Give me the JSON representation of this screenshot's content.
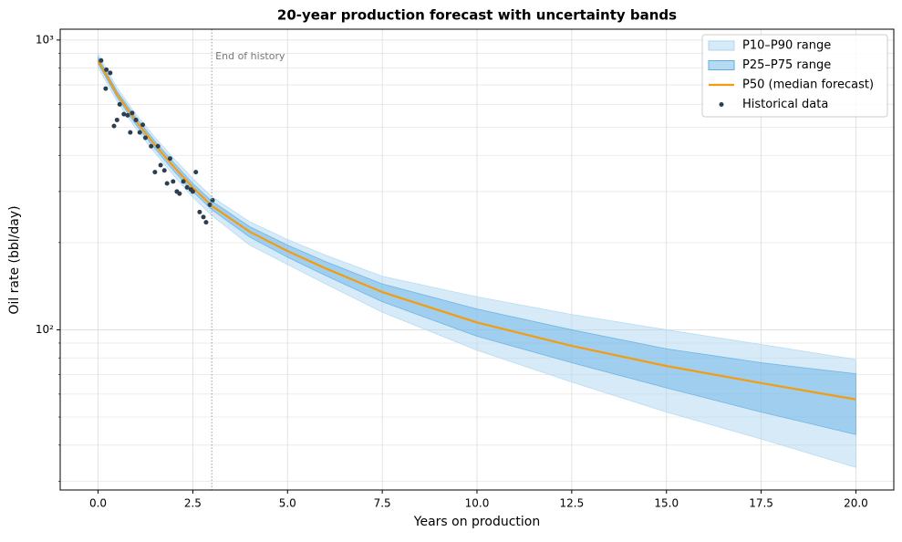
{
  "chart_data": {
    "type": "line",
    "title": "20-year production forecast with uncertainty bands",
    "x_label": "Years on production",
    "y_label": "Oil rate (bbl/day)",
    "xlim": [
      -1,
      21
    ],
    "ylim": [
      28,
      1090
    ],
    "log_y": true,
    "grid": true,
    "legend": "upper right",
    "xticks": [
      {
        "value": 0,
        "label": "0.0"
      },
      2.5,
      {
        "value": 5,
        "label": "5.0"
      },
      7.5,
      {
        "value": 10,
        "label": "10.0"
      },
      12.5,
      {
        "value": 15,
        "label": "15.0"
      },
      17.5,
      {
        "value": 20,
        "label": "20.0"
      }
    ],
    "yticks": [
      {
        "value": 100,
        "label": "10²"
      },
      {
        "value": 1000,
        "label": "10³"
      }
    ],
    "yminorticks": [
      30,
      40,
      50,
      60,
      70,
      80,
      90,
      200,
      300,
      400,
      500,
      600,
      700,
      800,
      900
    ],
    "x": [
      0,
      0.5,
      1,
      1.5,
      2,
      2.5,
      3,
      4,
      5,
      6,
      7.5,
      10,
      12.5,
      15,
      17.5,
      20
    ],
    "series": [
      {
        "name": "P10–P90 range",
        "kind": "band",
        "color": "#aed6f1",
        "opacity": 0.5,
        "lower": [
          805,
          615,
          495,
          408,
          340,
          287,
          248,
          196,
          168,
          144,
          115,
          85,
          66,
          52,
          42,
          33.5
        ],
        "upper": [
          895,
          685,
          555,
          462,
          390,
          333,
          288,
          236,
          205,
          181,
          153,
          130,
          113,
          100,
          89,
          79
        ]
      },
      {
        "name": "P25–P75 range",
        "kind": "band",
        "color": "#5dade2",
        "opacity": 0.45,
        "lower": [
          830,
          634,
          510,
          422,
          353,
          300,
          260,
          209,
          178,
          154,
          125,
          95,
          77,
          63,
          52,
          43.5
        ],
        "upper": [
          870,
          666,
          540,
          448,
          377,
          320,
          278,
          227,
          196,
          172,
          144,
          118,
          100,
          86,
          77,
          70.5
        ]
      },
      {
        "name": "P50 (median forecast)",
        "kind": "line",
        "color": "#f39c12",
        "values": [
          850,
          650,
          525,
          435,
          365,
          310,
          268,
          218,
          187,
          163,
          135,
          106,
          88,
          75,
          65.5,
          57.5
        ]
      },
      {
        "name": "Historical data",
        "kind": "scatter",
        "color": "#2c3e50",
        "x": [
          0.08,
          0.2,
          0.22,
          0.32,
          0.42,
          0.5,
          0.57,
          0.68,
          0.78,
          0.85,
          0.9,
          1.0,
          1.1,
          1.18,
          1.25,
          1.4,
          1.5,
          1.58,
          1.65,
          1.75,
          1.82,
          1.9,
          1.98,
          2.08,
          2.15,
          2.25,
          2.35,
          2.45,
          2.5,
          2.58,
          2.68,
          2.78,
          2.85,
          2.95,
          3.02
        ],
        "values": [
          850,
          680,
          790,
          770,
          505,
          530,
          600,
          555,
          550,
          480,
          560,
          530,
          480,
          510,
          460,
          430,
          350,
          430,
          370,
          355,
          320,
          390,
          325,
          300,
          295,
          325,
          310,
          305,
          300,
          350,
          255,
          245,
          235,
          270,
          280
        ]
      }
    ],
    "annotation": {
      "x": 3,
      "label": "End of history"
    }
  }
}
